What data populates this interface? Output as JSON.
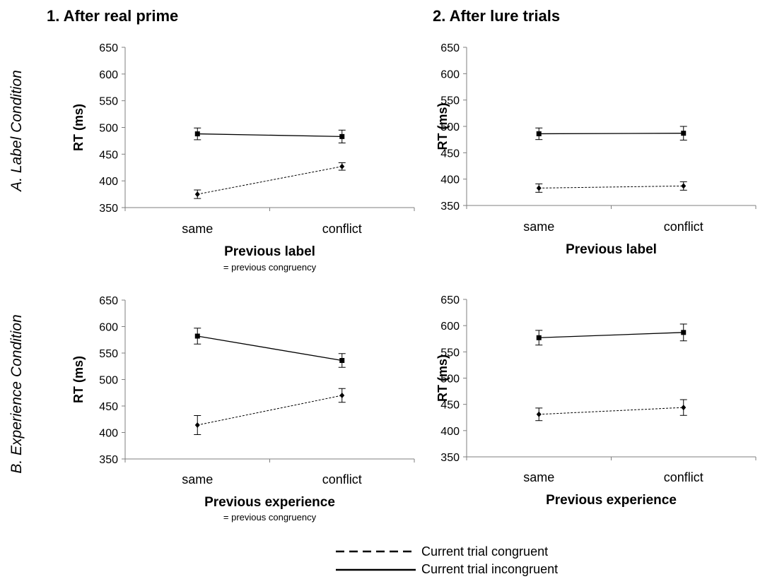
{
  "columns": [
    "1. After real prime",
    "2. After lure trials"
  ],
  "rows": [
    "A. Label Condition",
    "B. Experience Condition"
  ],
  "legend": {
    "congruent": "Current trial congruent",
    "incongruent": "Current trial incongruent"
  },
  "chart_data": [
    {
      "type": "line",
      "ylabel": "RT (ms)",
      "xlabel": "Previous label",
      "note": "= previous congruency",
      "categories": [
        "same",
        "conflict"
      ],
      "ylim": [
        350,
        650
      ],
      "yticks": [
        350,
        400,
        450,
        500,
        550,
        600,
        650
      ],
      "series": [
        {
          "name": "Current trial congruent",
          "style": "dashed",
          "values": [
            375,
            427
          ],
          "errors": [
            8,
            7
          ]
        },
        {
          "name": "Current trial incongruent",
          "style": "solid",
          "values": [
            488,
            483
          ],
          "errors": [
            11,
            12
          ]
        }
      ]
    },
    {
      "type": "line",
      "ylabel": "RT (ms)",
      "xlabel": "Previous label",
      "note": "",
      "categories": [
        "same",
        "conflict"
      ],
      "ylim": [
        350,
        650
      ],
      "yticks": [
        350,
        400,
        450,
        500,
        550,
        600,
        650
      ],
      "series": [
        {
          "name": "Current trial congruent",
          "style": "dashed",
          "values": [
            383,
            387
          ],
          "errors": [
            8,
            8
          ]
        },
        {
          "name": "Current trial incongruent",
          "style": "solid",
          "values": [
            486,
            487
          ],
          "errors": [
            11,
            13
          ]
        }
      ]
    },
    {
      "type": "line",
      "ylabel": "RT (ms)",
      "xlabel": "Previous experience",
      "note": "= previous congruency",
      "categories": [
        "same",
        "conflict"
      ],
      "ylim": [
        350,
        650
      ],
      "yticks": [
        350,
        400,
        450,
        500,
        550,
        600,
        650
      ],
      "series": [
        {
          "name": "Current trial congruent",
          "style": "dashed",
          "values": [
            414,
            470
          ],
          "errors": [
            18,
            13
          ]
        },
        {
          "name": "Current trial incongruent",
          "style": "solid",
          "values": [
            582,
            536
          ],
          "errors": [
            15,
            13
          ]
        }
      ]
    },
    {
      "type": "line",
      "ylabel": "RT (ms)",
      "xlabel": "Previous experience",
      "note": "",
      "categories": [
        "same",
        "conflict"
      ],
      "ylim": [
        350,
        650
      ],
      "yticks": [
        350,
        400,
        450,
        500,
        550,
        600,
        650
      ],
      "series": [
        {
          "name": "Current trial congruent",
          "style": "dashed",
          "values": [
            431,
            444
          ],
          "errors": [
            12,
            15
          ]
        },
        {
          "name": "Current trial incongruent",
          "style": "solid",
          "values": [
            577,
            587
          ],
          "errors": [
            14,
            16
          ]
        }
      ]
    }
  ]
}
